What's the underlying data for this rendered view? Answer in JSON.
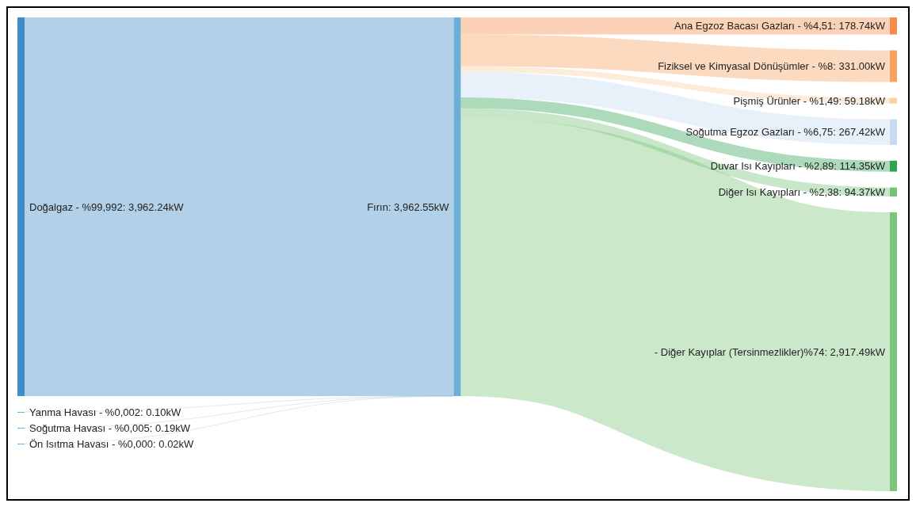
{
  "chart_data": {
    "type": "other",
    "categories": [
      "Doğalgaz - %99,992",
      "Yanma Havası - %0,002",
      "Soğutma Havası - %0,005",
      "Ön Isıtma Havası - %0,000",
      "Fırın",
      "Ana Egzoz Bacası Gazları - %4,51",
      "Fiziksel ve Kimyasal Dönüşümler - %8",
      "Pişmiş Ürünler - %1,49",
      "Soğutma Egzoz Gazları - %6,75",
      "Duvar Isı Kayıpları - %2,89",
      "Diğer Isı Kayıpları - %2,38",
      "- Diğer Kayıplar (Tersinmezlikler)%74"
    ],
    "series": [
      {
        "values": [
          3962.24,
          0.1,
          0.19,
          0.02,
          null,
          null,
          null,
          null,
          null,
          null,
          null,
          null
        ],
        "value_labels": [
          ": 3,962.24kW",
          ": 0.10kW",
          ": 0.19kW",
          ": 0.02kW",
          null,
          null,
          null,
          null,
          null,
          null,
          null,
          null
        ]
      },
      {
        "values": [
          null,
          null,
          null,
          null,
          3962.55,
          null,
          null,
          null,
          null,
          null,
          null,
          null
        ],
        "value_labels": [
          null,
          null,
          null,
          null,
          ": 3,962.55kW",
          null,
          null,
          null,
          null,
          null,
          null,
          null
        ]
      },
      {
        "values": [
          null,
          null,
          null,
          null,
          null,
          178.74,
          331.0,
          59.18,
          267.42,
          114.35,
          94.37,
          2917.49
        ],
        "value_labels": [
          null,
          null,
          null,
          null,
          null,
          ": 178.74kW",
          ": 331.00kW",
          ": 59.18kW",
          ": 267.42kW",
          ": 114.35kW",
          ": 94.37kW",
          ": 2,917.49kW"
        ]
      }
    ],
    "colors": [
      "#3f8cc6",
      "#6baed6",
      "#6baed6",
      "#6baed6",
      "#6baed6",
      "#f58d4a",
      "#f7a25f",
      "#fdd0a2",
      "#c6dbef",
      "#31a354",
      "#74c476",
      "#7dc57a"
    ]
  }
}
